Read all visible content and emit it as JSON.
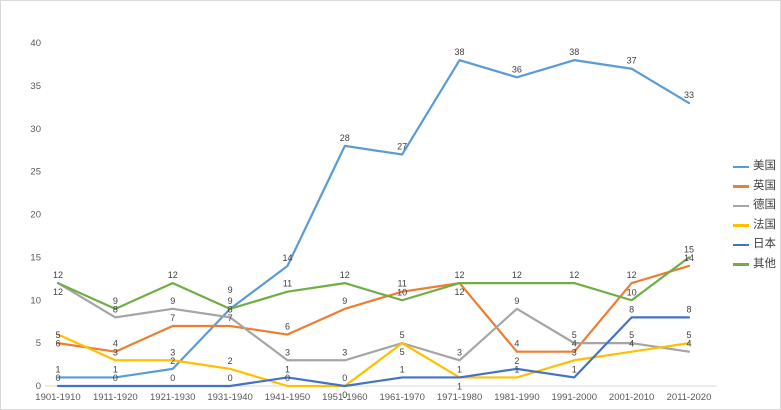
{
  "chart_data": {
    "type": "line",
    "title": "",
    "xlabel": "",
    "ylabel": "",
    "grid": false,
    "legend_position": "right",
    "data_labels": true,
    "ylim": [
      0,
      40
    ],
    "y_ticks": [
      0,
      5,
      10,
      15,
      20,
      25,
      30,
      35,
      40
    ],
    "categories": [
      "1901-1910",
      "1911-1920",
      "1921-1930",
      "1931-1940",
      "1941-1950",
      "1951-1960",
      "1961-1970",
      "1971-1980",
      "1981-1990",
      "1991-2000",
      "2001-2010",
      "2011-2020"
    ],
    "series": [
      {
        "name": "美国",
        "color": "#5B9BD5",
        "values": [
          1,
          1,
          2,
          9,
          14,
          28,
          27,
          38,
          36,
          38,
          37,
          33
        ]
      },
      {
        "name": "英国",
        "color": "#ED7D31",
        "values": [
          5,
          4,
          7,
          7,
          6,
          9,
          11,
          12,
          4,
          4,
          12,
          14
        ]
      },
      {
        "name": "德国",
        "color": "#A5A5A5",
        "values": [
          12,
          8,
          9,
          8,
          3,
          3,
          5,
          3,
          9,
          5,
          5,
          4
        ]
      },
      {
        "name": "法国",
        "color": "#FFC000",
        "values": [
          6,
          3,
          3,
          2,
          0,
          0,
          5,
          1,
          1,
          3,
          4,
          5
        ]
      },
      {
        "name": "日本",
        "color": "#4472C4",
        "values": [
          0,
          0,
          0,
          0,
          1,
          0,
          1,
          1,
          2,
          1,
          8,
          8
        ]
      },
      {
        "name": "其他",
        "color": "#70AD47",
        "values": [
          12,
          9,
          12,
          9,
          11,
          12,
          10,
          12,
          12,
          12,
          10,
          15
        ]
      }
    ]
  }
}
